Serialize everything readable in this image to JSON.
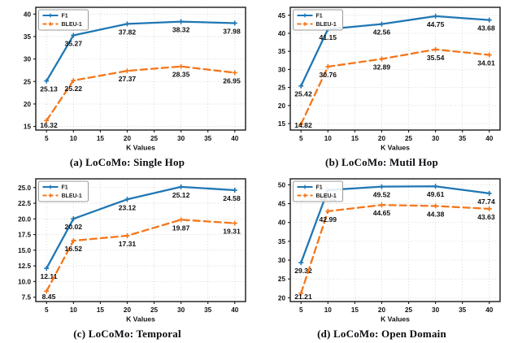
{
  "figure": {
    "background": "#ffffff",
    "axis_color": "#1a1a1a",
    "grid_color": "#d0d0d0",
    "label_color": "#111111"
  },
  "chart_data": [
    {
      "id": "a",
      "type": "line",
      "caption": "(a) LoCoMo: Single Hop",
      "xlabel": "K Values",
      "x": [
        5,
        10,
        20,
        30,
        40
      ],
      "xlim": [
        3,
        42
      ],
      "xtick_values": [
        5,
        10,
        15,
        20,
        25,
        30,
        35,
        40
      ],
      "xtick_labels": [
        "5",
        "10",
        "15",
        "20",
        "25",
        "30",
        "35",
        "40"
      ],
      "ylim": [
        14.2,
        41.5
      ],
      "ytick_values": [
        15,
        20,
        25,
        30,
        35,
        40
      ],
      "ytick_labels": [
        "15",
        "20",
        "25",
        "30",
        "35",
        "40"
      ],
      "grid": true,
      "legend": {
        "position": "upper-left",
        "entries": [
          "F1",
          "BLEU-1"
        ]
      },
      "series": [
        {
          "name": "F1",
          "color": "#1f77b4",
          "style": "solid",
          "marker": "plus",
          "values": [
            25.13,
            35.27,
            37.82,
            38.32,
            37.98
          ],
          "point_labels": [
            "25.13",
            "35.27",
            "37.82",
            "38.32",
            "37.98"
          ]
        },
        {
          "name": "BLEU-1",
          "color": "#f5761a",
          "style": "dashed",
          "marker": "plus",
          "values": [
            16.32,
            25.22,
            27.37,
            28.35,
            26.95
          ],
          "point_labels": [
            "16.32",
            "25.22",
            "27.37",
            "28.35",
            "26.95"
          ]
        }
      ]
    },
    {
      "id": "b",
      "type": "line",
      "caption": "(b) LoCoMo: Mutil Hop",
      "xlabel": "K Values",
      "x": [
        5,
        10,
        20,
        30,
        40
      ],
      "xlim": [
        3,
        42
      ],
      "xtick_values": [
        5,
        10,
        15,
        20,
        25,
        30,
        35,
        40
      ],
      "xtick_labels": [
        "5",
        "10",
        "15",
        "20",
        "25",
        "30",
        "35",
        "40"
      ],
      "ylim": [
        13.2,
        47.2
      ],
      "ytick_values": [
        15,
        20,
        25,
        30,
        35,
        40,
        45
      ],
      "ytick_labels": [
        "15",
        "20",
        "25",
        "30",
        "35",
        "40",
        "45"
      ],
      "grid": true,
      "legend": {
        "position": "upper-left",
        "entries": [
          "F1",
          "BLEU-1"
        ]
      },
      "series": [
        {
          "name": "F1",
          "color": "#1f77b4",
          "style": "solid",
          "marker": "plus",
          "values": [
            25.42,
            41.15,
            42.56,
            44.75,
            43.68
          ],
          "point_labels": [
            "25.42",
            "41.15",
            "42.56",
            "44.75",
            "43.68"
          ]
        },
        {
          "name": "BLEU-1",
          "color": "#f5761a",
          "style": "dashed",
          "marker": "plus",
          "values": [
            14.82,
            30.76,
            32.89,
            35.54,
            34.01
          ],
          "point_labels": [
            "14.82",
            "30.76",
            "32.89",
            "35.54",
            "34.01"
          ]
        }
      ]
    },
    {
      "id": "c",
      "type": "line",
      "caption": "(c) LoCoMo: Temporal",
      "xlabel": "K Values",
      "x": [
        5,
        10,
        20,
        30,
        40
      ],
      "xlim": [
        3,
        42
      ],
      "xtick_values": [
        5,
        10,
        15,
        20,
        25,
        30,
        35,
        40
      ],
      "xtick_labels": [
        "5",
        "10",
        "15",
        "20",
        "25",
        "30",
        "35",
        "40"
      ],
      "ylim": [
        6.8,
        26.4
      ],
      "ytick_values": [
        7.5,
        10.0,
        12.5,
        15.0,
        17.5,
        20.0,
        22.5,
        25.0
      ],
      "ytick_labels": [
        "7.5",
        "10.0",
        "12.5",
        "15.0",
        "17.5",
        "20.0",
        "22.5",
        "25.0"
      ],
      "grid": true,
      "legend": {
        "position": "upper-left",
        "entries": [
          "F1",
          "BLEU-1"
        ]
      },
      "series": [
        {
          "name": "F1",
          "color": "#1f77b4",
          "style": "solid",
          "marker": "plus",
          "values": [
            12.11,
            20.02,
            23.12,
            25.12,
            24.58
          ],
          "point_labels": [
            "12.11",
            "20.02",
            "23.12",
            "25.12",
            "24.58"
          ]
        },
        {
          "name": "BLEU-1",
          "color": "#f5761a",
          "style": "dashed",
          "marker": "plus",
          "values": [
            8.45,
            16.52,
            17.31,
            19.87,
            19.31
          ],
          "point_labels": [
            "8.45",
            "16.52",
            "17.31",
            "19.87",
            "19.31"
          ]
        }
      ]
    },
    {
      "id": "d",
      "type": "line",
      "caption": "(d) LoCoMo: Open Domain",
      "xlabel": "K Values",
      "x": [
        5,
        10,
        20,
        30,
        40
      ],
      "xlim": [
        3,
        42
      ],
      "xtick_values": [
        5,
        10,
        15,
        20,
        25,
        30,
        35,
        40
      ],
      "xtick_labels": [
        "5",
        "10",
        "15",
        "20",
        "25",
        "30",
        "35",
        "40"
      ],
      "ylim": [
        19.0,
        51.6
      ],
      "ytick_values": [
        20,
        25,
        30,
        35,
        40,
        45,
        50
      ],
      "ytick_labels": [
        "20",
        "25",
        "30",
        "35",
        "40",
        "45",
        "50"
      ],
      "grid": true,
      "legend": {
        "position": "upper-left",
        "entries": [
          "F1",
          "BLEU-1"
        ]
      },
      "series": [
        {
          "name": "F1",
          "color": "#1f77b4",
          "style": "solid",
          "marker": "plus",
          "values": [
            29.32,
            48.62,
            49.52,
            49.61,
            47.74
          ],
          "point_labels": [
            "29.32",
            "48.62",
            "49.52",
            "49.61",
            "47.74"
          ]
        },
        {
          "name": "BLEU-1",
          "color": "#f5761a",
          "style": "dashed",
          "marker": "plus",
          "values": [
            21.21,
            42.99,
            44.65,
            44.38,
            43.63
          ],
          "point_labels": [
            "21.21",
            "42.99",
            "44.65",
            "44.38",
            "43.63"
          ]
        }
      ]
    }
  ]
}
